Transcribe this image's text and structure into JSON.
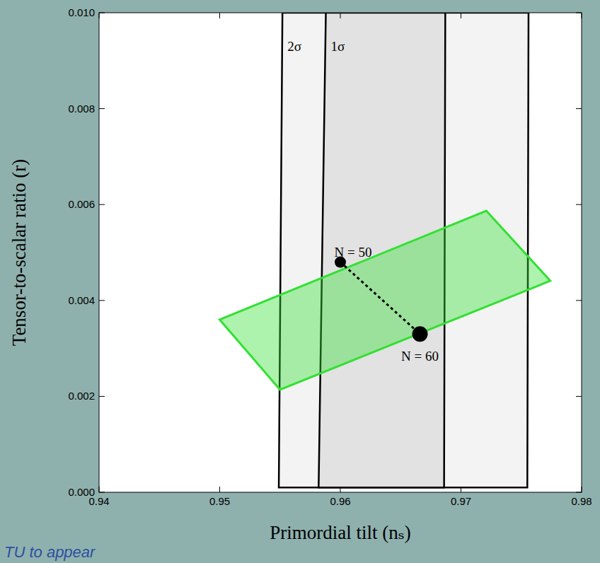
{
  "chart_data": {
    "type": "scatter",
    "xlabel": "Primordial tilt (nₛ)",
    "ylabel": "Tensor-to-scalar ratio (r)",
    "xlim": [
      0.94,
      0.98
    ],
    "ylim": [
      0,
      0.01
    ],
    "xticks": [
      0.94,
      0.95,
      0.96,
      0.97,
      0.98
    ],
    "yticks": [
      {
        "value": 0,
        "label": "0.000"
      },
      {
        "value": 0.002,
        "label": "0.002"
      },
      {
        "value": 0.004,
        "label": "0.004"
      },
      {
        "value": 0.006,
        "label": "0.006"
      },
      {
        "value": 0.008,
        "label": "0.008"
      },
      {
        "value": 0.01,
        "label": "0.010"
      }
    ],
    "regions": [
      {
        "name": "2σ",
        "color": "#f3f3f3",
        "x": [
          0.9549,
          0.9552,
          0.9756,
          0.9755
        ],
        "y": [
          0.0001,
          0.01,
          0.01,
          0.0001
        ]
      },
      {
        "name": "1σ",
        "color": "#e2e2e2",
        "x": [
          0.9582,
          0.9588,
          0.9687,
          0.9686
        ],
        "y": [
          0.0001,
          0.01,
          0.01,
          0.0001
        ]
      }
    ],
    "prediction_region": {
      "color": "#33e033",
      "x": [
        0.95,
        0.955,
        0.9774,
        0.9721
      ],
      "y": [
        0.0036,
        0.00214,
        0.00441,
        0.00587
      ]
    },
    "series": [
      {
        "x": [
          0.96,
          0.9666
        ],
        "values": [
          0.0048,
          0.0033
        ],
        "labels": [
          "N = 50",
          "N = 60"
        ],
        "color": "#000000",
        "marker": "circle",
        "line_style": "dashed"
      }
    ],
    "footnote": "TU to appear"
  }
}
